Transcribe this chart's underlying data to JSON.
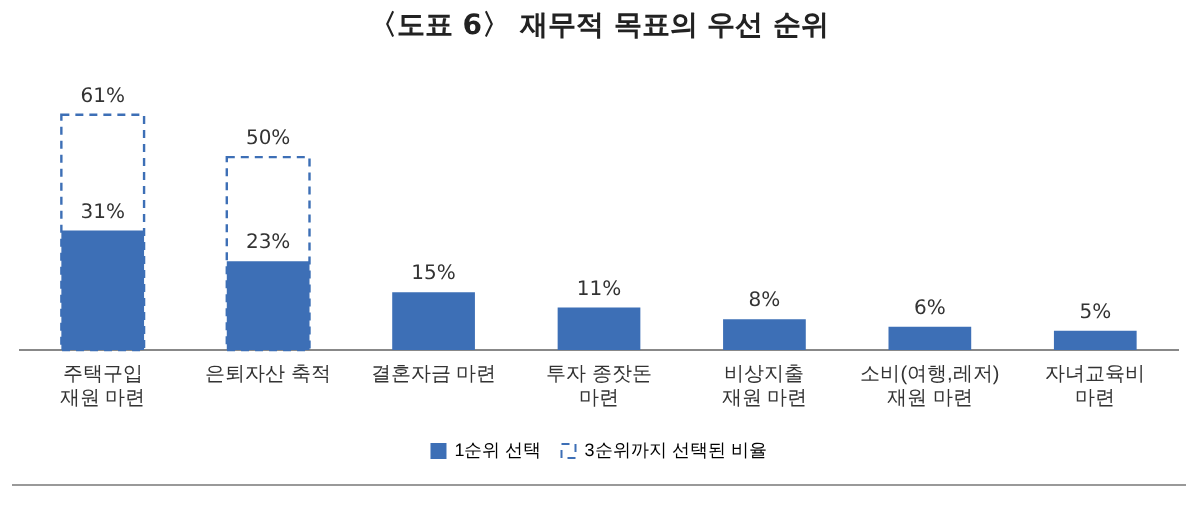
{
  "chart_data": {
    "type": "bar",
    "title": "〈도표 6〉 재무적 목표의 우선 순위",
    "categories": [
      "주택구입\n재원 마련",
      "은퇴자산 축적",
      "결혼자금 마련",
      "투자 종잣돈\n마련",
      "비상지출\n재원 마련",
      "소비(여행,레저)\n재원 마련",
      "자녀교육비\n마련"
    ],
    "series": [
      {
        "name": "1순위 선택",
        "color": "#3d6fb6",
        "values": [
          31,
          23,
          15,
          11,
          8,
          6,
          5
        ],
        "value_labels": [
          "31%",
          "23%",
          "15%",
          "11%",
          "8%",
          "6%",
          "5%"
        ]
      },
      {
        "name": "3순위까지 선택된 비율",
        "color": "#3d6fb6",
        "line_style": "dashed",
        "values": [
          61,
          50,
          null,
          null,
          null,
          null,
          null
        ],
        "value_labels": [
          "61%",
          "50%",
          null,
          null,
          null,
          null,
          null
        ]
      }
    ],
    "legend": "bottom",
    "grid": false
  }
}
